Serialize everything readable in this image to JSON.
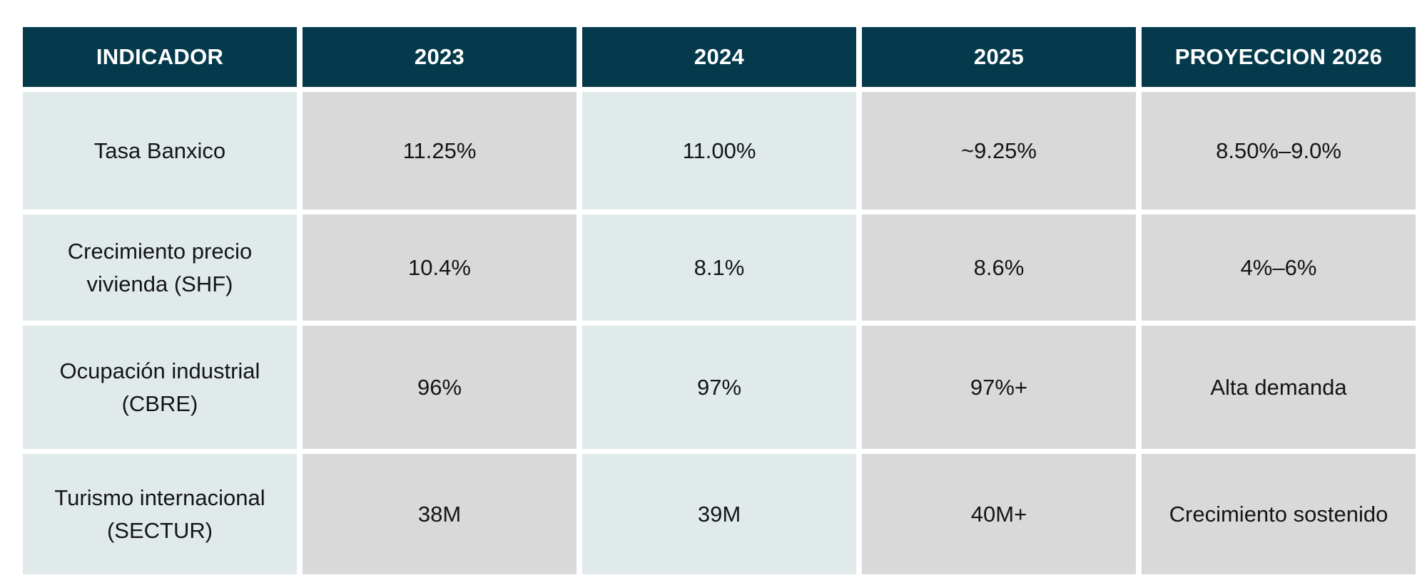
{
  "table": {
    "headers": [
      "INDICADOR",
      "2023",
      "2024",
      "2025",
      "PROYECCION 2026"
    ],
    "rows": [
      [
        "Tasa Banxico",
        "11.25%",
        "11.00%",
        "~9.25%",
        "8.50%–9.0%"
      ],
      [
        "Crecimiento precio\nvivienda (SHF)",
        "10.4%",
        "8.1%",
        "8.6%",
        "4%–6%"
      ],
      [
        "Ocupación industrial\n(CBRE)",
        "96%",
        "97%",
        "97%+",
        "Alta demanda"
      ],
      [
        "Turismo internacional\n(SECTUR)",
        "38M",
        "39M",
        "40M+",
        "Crecimiento sostenido"
      ]
    ]
  },
  "colors": {
    "header_bg": "#053a4c",
    "header_text": "#ffffff",
    "cell_light": "#e1eaeb",
    "cell_grey": "#d9d9d9"
  }
}
